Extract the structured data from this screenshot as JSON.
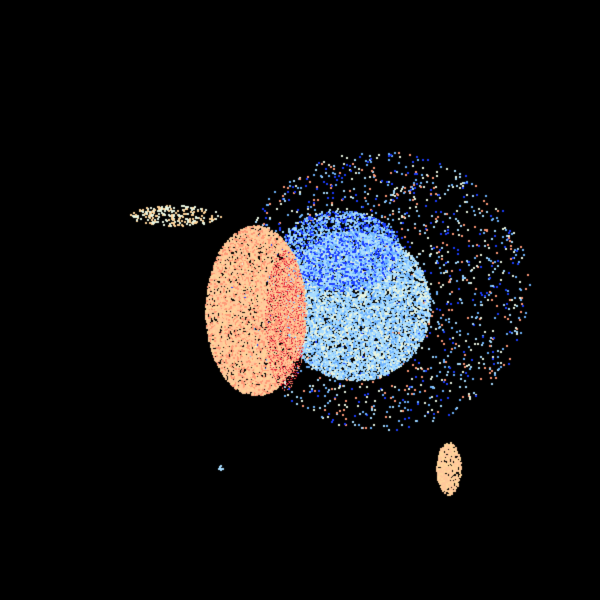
{
  "display": {
    "background": "#000000",
    "palette": {
      "inbound_light": "#a8dcff",
      "inbound_mid": "#6fb4ff",
      "inbound_strong": "#1a3cff",
      "outbound_light": "#ffc89a",
      "outbound_mid": "#ff9a78",
      "outbound_strong": "#e0203a",
      "peach": "#ffd49a",
      "pale": "#e8f4e0"
    }
  }
}
